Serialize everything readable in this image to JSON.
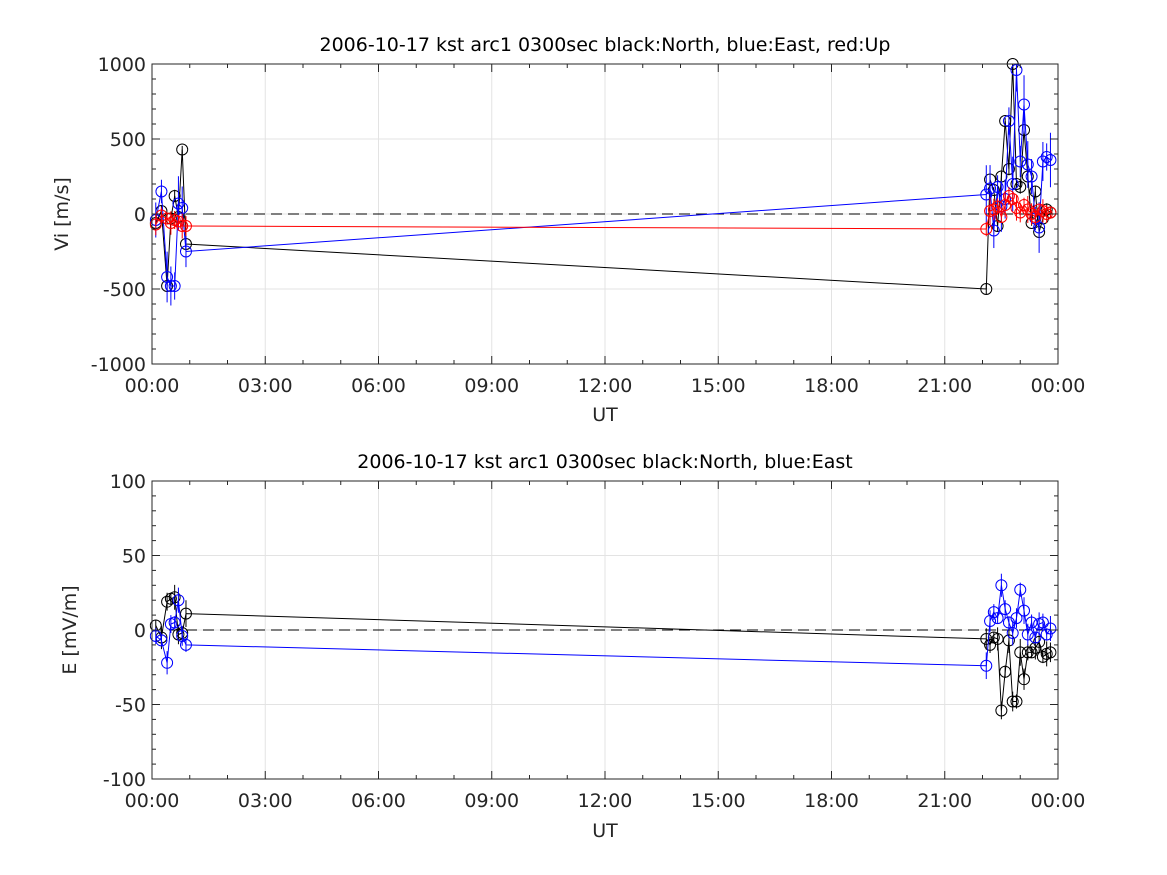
{
  "chart_data": [
    {
      "type": "line",
      "title": "2006-10-17 kst arc1 0300sec black:North, blue:East, red:Up",
      "xlabel": "UT",
      "ylabel": "Vi [m/s]",
      "xlim": [
        0,
        24
      ],
      "ylim": [
        -1000,
        1000
      ],
      "x_ticks": [
        "00:00",
        "03:00",
        "06:00",
        "09:00",
        "12:00",
        "15:00",
        "18:00",
        "21:00",
        "00:00"
      ],
      "y_ticks": [
        "-1000",
        "-500",
        "0",
        "500",
        "1000"
      ],
      "grid": true,
      "zero_line": "dashed",
      "series": [
        {
          "name": "North",
          "color": "#000000",
          "x": [
            0.1,
            0.25,
            0.4,
            0.5,
            0.6,
            0.7,
            0.8,
            0.9,
            22.1,
            22.2,
            22.3,
            22.4,
            22.5,
            22.6,
            22.7,
            22.8,
            22.9,
            23.0,
            23.1,
            23.2,
            23.3,
            23.4,
            23.5,
            23.6,
            23.7,
            23.8
          ],
          "y": [
            -60,
            20,
            -480,
            -30,
            120,
            -20,
            430,
            -200,
            -500,
            230,
            160,
            -80,
            250,
            620,
            300,
            1000,
            200,
            180,
            560,
            250,
            -60,
            150,
            -120,
            -30,
            30,
            10
          ]
        },
        {
          "name": "East",
          "color": "#0000ff",
          "x": [
            0.1,
            0.25,
            0.4,
            0.5,
            0.6,
            0.7,
            0.8,
            0.9,
            22.1,
            22.2,
            22.3,
            22.4,
            22.5,
            22.6,
            22.7,
            22.8,
            22.9,
            23.0,
            23.1,
            23.2,
            23.3,
            23.4,
            23.5,
            23.6,
            23.7,
            23.8
          ],
          "y": [
            -40,
            150,
            -420,
            -480,
            -480,
            70,
            40,
            -250,
            130,
            170,
            -110,
            180,
            50,
            100,
            620,
            200,
            960,
            350,
            730,
            330,
            250,
            -30,
            -90,
            350,
            380,
            360
          ]
        },
        {
          "name": "Up",
          "color": "#ff0000",
          "x": [
            0.1,
            0.25,
            0.4,
            0.5,
            0.6,
            0.7,
            0.8,
            0.9,
            22.1,
            22.2,
            22.3,
            22.4,
            22.5,
            22.6,
            22.7,
            22.8,
            22.9,
            23.0,
            23.1,
            23.2,
            23.3,
            23.4,
            23.5,
            23.6,
            23.7,
            23.8
          ],
          "y": [
            -70,
            -10,
            -30,
            -60,
            -40,
            -50,
            -80,
            -80,
            -100,
            20,
            30,
            50,
            -20,
            60,
            120,
            100,
            40,
            10,
            60,
            30,
            0,
            -20,
            30,
            20,
            0,
            10
          ]
        }
      ]
    },
    {
      "type": "line",
      "title": "2006-10-17 kst arc1 0300sec black:North, blue:East",
      "xlabel": "UT",
      "ylabel": "E [mV/m]",
      "xlim": [
        0,
        24
      ],
      "ylim": [
        -100,
        100
      ],
      "x_ticks": [
        "00:00",
        "03:00",
        "06:00",
        "09:00",
        "12:00",
        "15:00",
        "18:00",
        "21:00",
        "00:00"
      ],
      "y_ticks": [
        "-100",
        "-50",
        "0",
        "50",
        "100"
      ],
      "grid": true,
      "zero_line": "dashed",
      "series": [
        {
          "name": "North",
          "color": "#000000",
          "x": [
            0.1,
            0.25,
            0.4,
            0.5,
            0.6,
            0.7,
            0.8,
            0.9,
            22.1,
            22.2,
            22.3,
            22.4,
            22.5,
            22.6,
            22.7,
            22.8,
            22.9,
            23.0,
            23.1,
            23.2,
            23.3,
            23.4,
            23.5,
            23.6,
            23.7,
            23.8
          ],
          "y": [
            3,
            -5,
            19,
            21,
            22,
            -3,
            -2,
            11,
            -6,
            -10,
            -5,
            -6,
            -54,
            -28,
            -7,
            -48,
            -48,
            -15,
            -33,
            -15,
            -15,
            -12,
            -8,
            -18,
            -16,
            -15
          ]
        },
        {
          "name": "East",
          "color": "#0000ff",
          "x": [
            0.1,
            0.25,
            0.4,
            0.5,
            0.6,
            0.7,
            0.8,
            0.9,
            22.1,
            22.2,
            22.3,
            22.4,
            22.5,
            22.6,
            22.7,
            22.8,
            22.9,
            23.0,
            23.1,
            23.2,
            23.3,
            23.4,
            23.5,
            23.6,
            23.7,
            23.8
          ],
          "y": [
            -4,
            -7,
            -22,
            4,
            5,
            20,
            -4,
            -10,
            -24,
            6,
            12,
            8,
            30,
            14,
            5,
            -2,
            8,
            27,
            13,
            -3,
            5,
            -5,
            4,
            5,
            -3,
            1
          ]
        }
      ]
    }
  ]
}
